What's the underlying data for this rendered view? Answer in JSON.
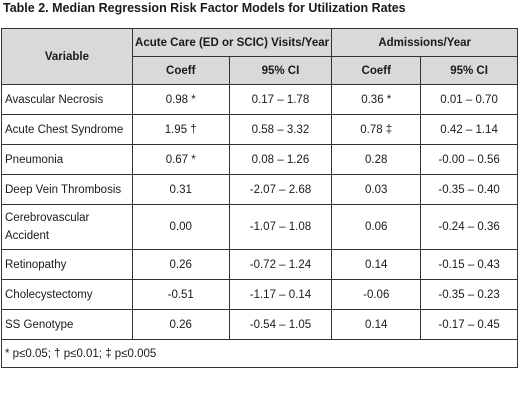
{
  "caption": "Table 2. Median Regression Risk Factor Models for Utilization Rates",
  "header": {
    "variable": "Variable",
    "group1": "Acute Care (ED or SCIC) Visits/Year",
    "group2": "Admissions/Year",
    "coeff": "Coeff",
    "ci": "95% CI"
  },
  "rows": [
    {
      "variable": "Avascular Necrosis",
      "coeff1": "0.98 *",
      "ci1": "0.17 – 1.78",
      "coeff2": "0.36 *",
      "ci2": "0.01 – 0.70"
    },
    {
      "variable": "Acute Chest Syndrome",
      "coeff1": "1.95 †",
      "ci1": "0.58 – 3.32",
      "coeff2": "0.78 ‡",
      "ci2": "0.42 – 1.14"
    },
    {
      "variable": "Pneumonia",
      "coeff1": "0.67 *",
      "ci1": "0.08 – 1.26",
      "coeff2": "0.28",
      "ci2": "-0.00 – 0.56"
    },
    {
      "variable": "Deep Vein Thrombosis",
      "coeff1": "0.31",
      "ci1": "-2.07 – 2.68",
      "coeff2": "0.03",
      "ci2": "-0.35 – 0.40"
    },
    {
      "variable": "Cerebrovascular Accident",
      "coeff1": "0.00",
      "ci1": "-1.07 – 1.08",
      "coeff2": "0.06",
      "ci2": "-0.24 – 0.36"
    },
    {
      "variable": "Retinopathy",
      "coeff1": "0.26",
      "ci1": "-0.72 – 1.24",
      "coeff2": "0.14",
      "ci2": "-0.15 – 0.43"
    },
    {
      "variable": "Cholecystectomy",
      "coeff1": "-0.51",
      "ci1": "-1.17 – 0.14",
      "coeff2": "-0.06",
      "ci2": "-0.35 – 0.23"
    },
    {
      "variable": "SS Genotype",
      "coeff1": "0.26",
      "ci1": "-0.54 – 1.05",
      "coeff2": "0.14",
      "ci2": "-0.17 – 0.45"
    }
  ],
  "footnote": "* p≤0.05; † p≤0.01; ‡ p≤0.005"
}
